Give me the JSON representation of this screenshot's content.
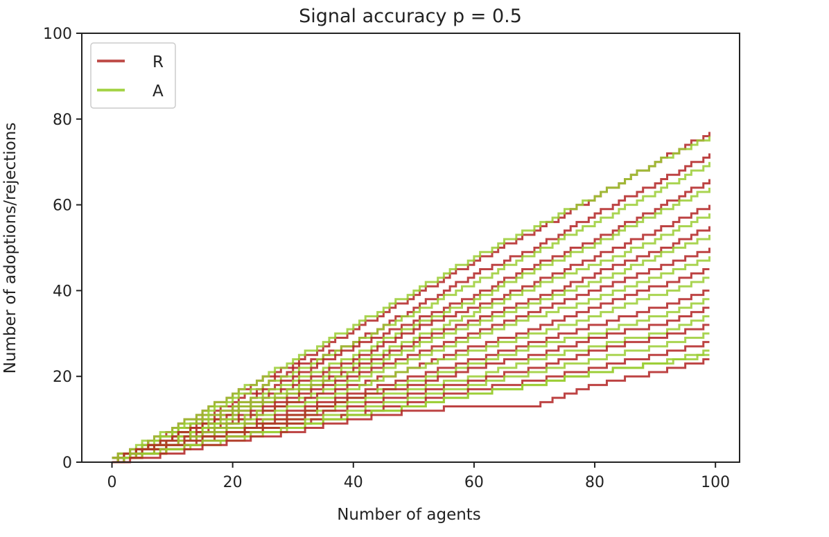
{
  "chart_data": {
    "type": "line",
    "title": "Signal accuracy p =  0.5",
    "xlabel": "Number of agents",
    "ylabel": "Number of adoptions/rejections",
    "xlim": [
      -5,
      104
    ],
    "ylim": [
      0,
      100
    ],
    "xticks": [
      0,
      20,
      40,
      60,
      80,
      100
    ],
    "yticks": [
      0,
      20,
      40,
      60,
      80,
      100
    ],
    "grid": false,
    "legend_placement": "top-left",
    "colors": {
      "R": "#b22222",
      "A": "#9acd32"
    },
    "x": [
      0,
      10,
      20,
      30,
      40,
      50,
      60,
      70,
      80,
      90,
      99
    ],
    "legend": [
      {
        "name": "R",
        "color": "#c0504d"
      },
      {
        "name": "A",
        "color": "#a6d44a"
      }
    ],
    "series": [
      {
        "group": "R",
        "values": [
          0,
          8,
          16,
          23,
          31,
          39,
          47,
          54,
          62,
          70,
          77
        ]
      },
      {
        "group": "A",
        "values": [
          1,
          8,
          16,
          24,
          32,
          40,
          48,
          55,
          62,
          70,
          76
        ]
      },
      {
        "group": "R",
        "values": [
          1,
          7,
          14,
          22,
          28,
          36,
          44,
          50,
          58,
          65,
          72
        ]
      },
      {
        "group": "A",
        "values": [
          0,
          7,
          15,
          21,
          28,
          35,
          42,
          49,
          56,
          63,
          70
        ]
      },
      {
        "group": "R",
        "values": [
          0,
          6,
          13,
          20,
          27,
          33,
          39,
          46,
          52,
          59,
          66
        ]
      },
      {
        "group": "A",
        "values": [
          1,
          7,
          13,
          19,
          25,
          32,
          38,
          45,
          51,
          58,
          64
        ]
      },
      {
        "group": "R",
        "values": [
          1,
          5,
          12,
          18,
          24,
          31,
          36,
          42,
          48,
          54,
          60
        ]
      },
      {
        "group": "A",
        "values": [
          0,
          6,
          12,
          17,
          23,
          29,
          35,
          41,
          46,
          52,
          58
        ]
      },
      {
        "group": "R",
        "values": [
          0,
          6,
          11,
          16,
          22,
          28,
          33,
          38,
          44,
          49,
          55
        ]
      },
      {
        "group": "A",
        "values": [
          1,
          5,
          11,
          16,
          21,
          27,
          32,
          37,
          42,
          48,
          53
        ]
      },
      {
        "group": "R",
        "values": [
          0,
          4,
          10,
          15,
          20,
          25,
          30,
          35,
          40,
          45,
          50
        ]
      },
      {
        "group": "A",
        "values": [
          0,
          5,
          10,
          14,
          19,
          24,
          29,
          34,
          38,
          43,
          48
        ]
      },
      {
        "group": "R",
        "values": [
          1,
          5,
          9,
          14,
          18,
          22,
          27,
          31,
          36,
          41,
          45
        ]
      },
      {
        "group": "A",
        "values": [
          0,
          4,
          9,
          13,
          17,
          22,
          26,
          30,
          34,
          39,
          43
        ]
      },
      {
        "group": "R",
        "values": [
          0,
          4,
          8,
          12,
          16,
          20,
          24,
          28,
          32,
          36,
          40
        ]
      },
      {
        "group": "A",
        "values": [
          1,
          4,
          8,
          11,
          15,
          19,
          23,
          27,
          30,
          34,
          38
        ]
      },
      {
        "group": "R",
        "values": [
          0,
          3,
          7,
          11,
          15,
          18,
          22,
          25,
          29,
          32,
          36
        ]
      },
      {
        "group": "A",
        "values": [
          0,
          4,
          7,
          10,
          14,
          17,
          20,
          24,
          27,
          30,
          34
        ]
      },
      {
        "group": "R",
        "values": [
          1,
          4,
          7,
          10,
          13,
          16,
          19,
          22,
          26,
          29,
          32
        ]
      },
      {
        "group": "A",
        "values": [
          0,
          3,
          6,
          9,
          12,
          15,
          18,
          21,
          24,
          27,
          30
        ]
      },
      {
        "group": "R",
        "values": [
          0,
          3,
          6,
          9,
          11,
          14,
          17,
          19,
          22,
          25,
          28
        ]
      },
      {
        "group": "A",
        "values": [
          0,
          3,
          5,
          8,
          11,
          13,
          16,
          18,
          21,
          23,
          26
        ]
      },
      {
        "group": "A",
        "values": [
          1,
          3,
          6,
          8,
          11,
          13,
          16,
          18,
          21,
          23,
          25
        ]
      },
      {
        "group": "R",
        "values": [
          0,
          2,
          5,
          7,
          10,
          12,
          13,
          13,
          18,
          21,
          24
        ]
      }
    ]
  }
}
